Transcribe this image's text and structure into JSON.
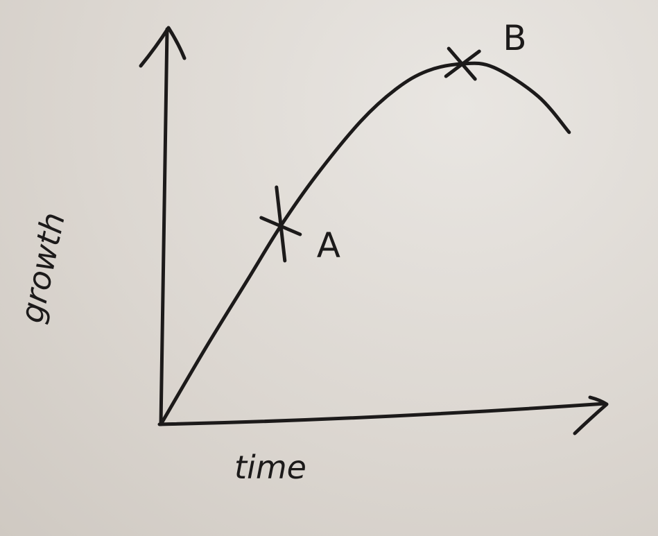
{
  "chart_data": {
    "type": "line",
    "xlabel": "time",
    "ylabel": "growth",
    "grid": false,
    "xlim": [
      0,
      10
    ],
    "ylim": [
      0,
      10
    ],
    "series": [
      {
        "x": [
          0,
          1.0,
          2.0,
          2.7,
          3.5,
          4.5,
          5.3,
          6.0,
          6.8,
          7.5,
          8.5,
          9.2
        ],
        "values": [
          0,
          2.1,
          4.1,
          5.5,
          6.9,
          8.4,
          9.3,
          9.8,
          10.0,
          9.9,
          9.1,
          8.1
        ]
      }
    ],
    "annotations": [
      {
        "label": "A",
        "x": 2.7,
        "y": 5.5
      },
      {
        "label": "B",
        "x": 6.8,
        "y": 10.0
      }
    ]
  },
  "colors": {
    "ink": "#1c1a1a",
    "paper": "#dcd7d1"
  }
}
